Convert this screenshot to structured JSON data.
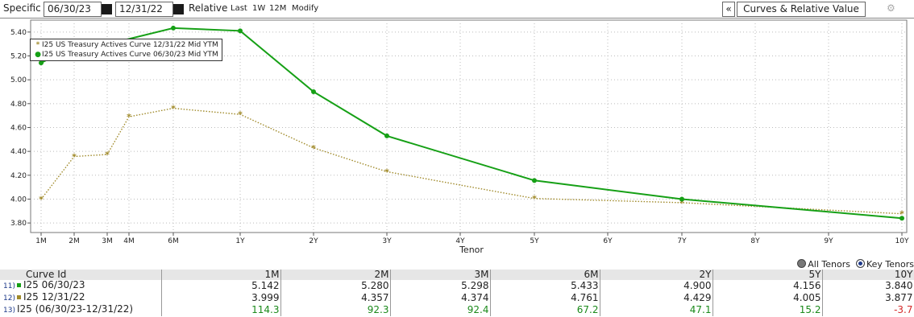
{
  "toolbar": {
    "mode_label": "Specific",
    "date1": "06/30/23",
    "date2": "12/31/22",
    "relative_label": "Relative",
    "last_label": "Last",
    "w1_label": "1W",
    "m12_label": "12M",
    "modify_label": "Modify",
    "collapse_label": "«",
    "panel_label": "Curves & Relative Value",
    "settings_label": "⚙"
  },
  "chart_data": {
    "type": "line",
    "xlabel": "Tenor",
    "ylabel": "",
    "ylim": [
      3.72,
      5.5
    ],
    "yticks": [
      3.8,
      4.0,
      4.2,
      4.4,
      4.6,
      4.8,
      5.0,
      5.2,
      5.4
    ],
    "ytick_labels": [
      "3.80",
      "4.00",
      "4.20",
      "4.40",
      "4.60",
      "4.80",
      "5.00",
      "5.20",
      "5.40"
    ],
    "x_ticks": [
      {
        "label": "1M",
        "t": 0.0833
      },
      {
        "label": "2M",
        "t": 0.1667
      },
      {
        "label": "3M",
        "t": 0.25
      },
      {
        "label": "4M",
        "t": 0.333
      },
      {
        "label": "6M",
        "t": 0.5
      },
      {
        "label": "1Y",
        "t": 1
      },
      {
        "label": "2Y",
        "t": 2
      },
      {
        "label": "3Y",
        "t": 3
      },
      {
        "label": "4Y",
        "t": 4
      },
      {
        "label": "5Y",
        "t": 5
      },
      {
        "label": "6Y",
        "t": 6
      },
      {
        "label": "7Y",
        "t": 7
      },
      {
        "label": "8Y",
        "t": 8
      },
      {
        "label": "9Y",
        "t": 9
      },
      {
        "label": "10Y",
        "t": 10
      }
    ],
    "grid": true,
    "legend": "top-left",
    "series": [
      {
        "name": "I25 US Treasury Actives Curve 12/31/22 Mid YTM",
        "marker": "*",
        "color": "#a08a2a",
        "style": "dotted",
        "x": [
          0.0833,
          0.1667,
          0.25,
          0.333,
          0.5,
          1,
          2,
          3,
          5,
          7,
          10
        ],
        "y": [
          3.999,
          4.357,
          4.374,
          4.69,
          4.761,
          4.71,
          4.429,
          4.23,
          4.005,
          3.97,
          3.877
        ]
      },
      {
        "name": "I25 US Treasury Actives Curve 06/30/23 Mid YTM",
        "marker": "●",
        "color": "#16a016",
        "style": "solid",
        "x": [
          0.0833,
          0.1667,
          0.25,
          0.5,
          1,
          2,
          3,
          5,
          7,
          10
        ],
        "y": [
          5.142,
          5.28,
          5.298,
          5.433,
          5.41,
          4.9,
          4.53,
          4.156,
          4.0,
          3.84
        ]
      }
    ]
  },
  "tenor_options": {
    "all_label": "All Tenors",
    "key_label": "Key Tenors"
  },
  "table": {
    "headers": [
      "Curve Id",
      "1M",
      "2M",
      "3M",
      "6M",
      "2Y",
      "5Y",
      "10Y"
    ],
    "rows": [
      {
        "num": "11)",
        "swatch": "#16a016",
        "label": "I25 06/30/23",
        "values": [
          "5.142",
          "5.280",
          "5.298",
          "5.433",
          "4.900",
          "4.156",
          "3.840"
        ]
      },
      {
        "num": "12)",
        "swatch": "#a08a2a",
        "label": "I25 12/31/22",
        "values": [
          "3.999",
          "4.357",
          "4.374",
          "4.761",
          "4.429",
          "4.005",
          "3.877"
        ]
      },
      {
        "num": "13)",
        "swatch": "",
        "label": "I25 (06/30/23-12/31/22)",
        "values": [
          "114.3",
          "92.3",
          "92.4",
          "67.2",
          "47.1",
          "15.2",
          "-3.7"
        ]
      }
    ]
  }
}
